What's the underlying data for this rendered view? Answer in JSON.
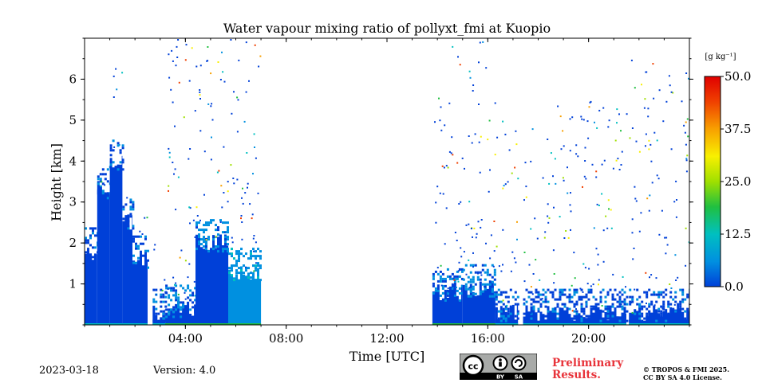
{
  "chart_data": {
    "type": "heatmap",
    "title": "Water vapour mixing ratio of pollyxt_fmi at Kuopio",
    "xlabel": "Time [UTC]",
    "ylabel": "Height [km]",
    "xlim_hours": [
      0,
      24
    ],
    "ylim_km": [
      0,
      7
    ],
    "x_ticks": [
      {
        "hour": 4,
        "label": "04:00"
      },
      {
        "hour": 8,
        "label": "08:00"
      },
      {
        "hour": 12,
        "label": "12:00"
      },
      {
        "hour": 16,
        "label": "16:00"
      },
      {
        "hour": 20,
        "label": "20:00"
      }
    ],
    "y_ticks": [
      {
        "km": 1,
        "label": "1"
      },
      {
        "km": 2,
        "label": "2"
      },
      {
        "km": 3,
        "label": "3"
      },
      {
        "km": 4,
        "label": "4"
      },
      {
        "km": 5,
        "label": "5"
      },
      {
        "km": 6,
        "label": "6"
      }
    ],
    "colorbar": {
      "label": "[g kg⁻¹]",
      "min": 0.0,
      "max": 50.0,
      "tick_labels": [
        "0.0",
        "12.5",
        "25.0",
        "37.5",
        "50.0"
      ],
      "tick_values": [
        0,
        12.5,
        25,
        37.5,
        50
      ],
      "colormap": [
        "#0040d8",
        "#0090e0",
        "#00c0c0",
        "#20c040",
        "#a0e000",
        "#f8f000",
        "#f8a000",
        "#f04000",
        "#e00000"
      ]
    },
    "data_segments": [
      {
        "start_h": 0.0,
        "end_h": 0.5,
        "dense_top_km": 1.8,
        "sparse_top_km": 2.2,
        "value": 1.5
      },
      {
        "start_h": 0.5,
        "end_h": 1.0,
        "dense_top_km": 3.3,
        "sparse_top_km": 4.5,
        "value": 1.5
      },
      {
        "start_h": 1.0,
        "end_h": 1.5,
        "dense_top_km": 4.0,
        "sparse_top_km": 6.3,
        "value": 1.5
      },
      {
        "start_h": 1.5,
        "end_h": 1.9,
        "dense_top_km": 2.5,
        "sparse_top_km": 3.2,
        "value": 1.5
      },
      {
        "start_h": 1.9,
        "end_h": 2.5,
        "dense_top_km": 1.6,
        "sparse_top_km": 2.7,
        "value": 1.5
      },
      {
        "start_h": 2.7,
        "end_h": 3.2,
        "dense_top_km": 0.3,
        "sparse_top_km": 2.0,
        "value": 2.0
      },
      {
        "start_h": 3.2,
        "end_h": 4.4,
        "dense_top_km": 0.4,
        "sparse_top_km": 7.0,
        "value": 3.0
      },
      {
        "start_h": 4.4,
        "end_h": 5.7,
        "dense_top_km": 2.0,
        "sparse_top_km": 7.0,
        "value": 5.0
      },
      {
        "start_h": 5.7,
        "end_h": 7.0,
        "dense_top_km": 1.3,
        "sparse_top_km": 7.0,
        "value": 6.0
      },
      {
        "start_h": 13.8,
        "end_h": 15.0,
        "dense_top_km": 0.8,
        "sparse_top_km": 7.0,
        "value": 3.0
      },
      {
        "start_h": 15.0,
        "end_h": 16.3,
        "dense_top_km": 0.9,
        "sparse_top_km": 7.0,
        "value": 4.0
      },
      {
        "start_h": 16.3,
        "end_h": 17.2,
        "dense_top_km": 0.3,
        "sparse_top_km": 5.0,
        "value": 2.0
      },
      {
        "start_h": 17.4,
        "end_h": 21.5,
        "dense_top_km": 0.3,
        "sparse_top_km": 5.5,
        "value": 1.0
      },
      {
        "start_h": 21.6,
        "end_h": 24.0,
        "dense_top_km": 0.3,
        "sparse_top_km": 6.5,
        "value": 1.0
      }
    ]
  },
  "footer": {
    "date": "2023-03-18",
    "version": "Version: 4.0",
    "preliminary_line1": "Preliminary",
    "preliminary_line2": "Results.",
    "copyright_line1": "© TROPOS & FMI 2025.",
    "copyright_line2": "CC BY SA 4.0 License.",
    "license_badge": {
      "icon": "cc-by-sa-icon",
      "by": "BY",
      "sa": "SA"
    }
  }
}
